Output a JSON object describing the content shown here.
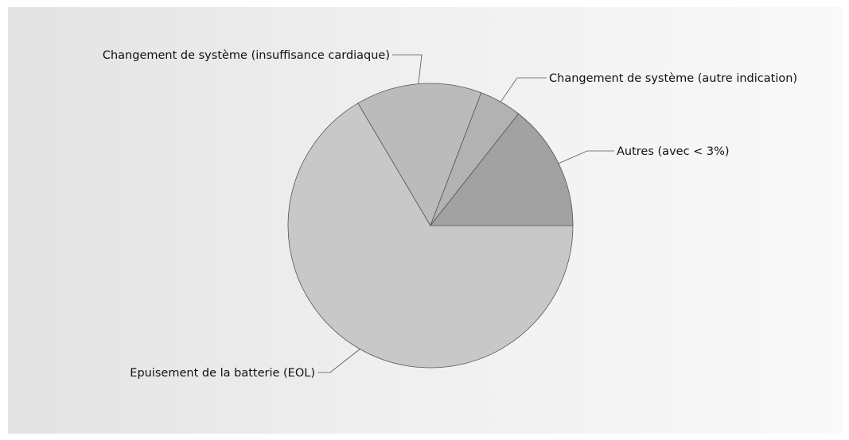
{
  "chart_data": {
    "type": "pie",
    "title": "",
    "legend": "none",
    "slices": [
      {
        "label": "Epuisement de la batterie (EOL)",
        "value": 66.5,
        "color": "#c8c8c8"
      },
      {
        "label": "Changement de système (insuffisance cardiaque)",
        "value": 14.3,
        "color": "#bbbbbb"
      },
      {
        "label": "Changement de système (autre indication)",
        "value": 4.8,
        "color": "#b2b2b2"
      },
      {
        "label": "Autres (avec < 3%)",
        "value": 14.4,
        "color": "#a2a2a2"
      }
    ]
  }
}
